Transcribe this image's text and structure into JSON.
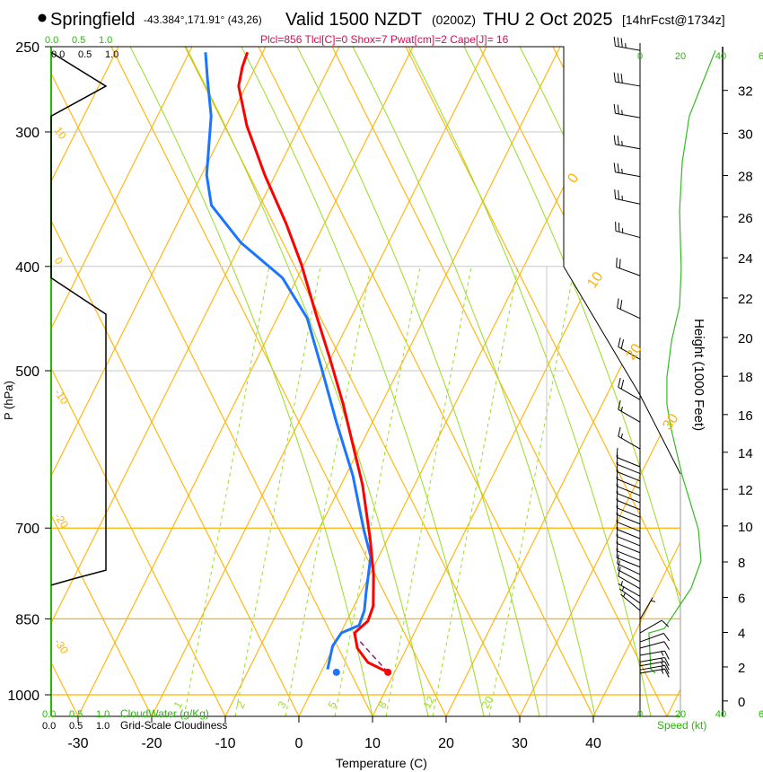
{
  "header": {
    "station": "Springfield",
    "coords": "-43.384°,171.91° (43,26)",
    "valid": "Valid 1500 NZDT",
    "utc": "(0200Z)",
    "date": "THU 2 Oct 2025",
    "forecast": "[14hrFcst@1734z]",
    "params": "Plcl=856 Tlcl[C]=0 Shox=7 Pwat[cm]=2 Cape[J]= 16"
  },
  "colors": {
    "temperature": "#ff0000",
    "dewpoint": "#1a75ff",
    "isotherm": "#ffb300",
    "mixing": "#99dd22",
    "green_label": "#22bb00",
    "params": "#cc1155",
    "parcel": "#882288"
  },
  "chart_data": {
    "type": "line",
    "title": "Skew-T log-P sounding",
    "xlabel": "Temperature (C)",
    "ylabel": "P (hPa)",
    "right_label": "Height (1000 Feet)",
    "x_ticks": [
      -30,
      -20,
      -10,
      0,
      10,
      20,
      30,
      40
    ],
    "y_ticks": [
      250,
      300,
      400,
      500,
      700,
      850,
      1000
    ],
    "ylim": [
      1000,
      250
    ],
    "isotherm_labels": [
      "0",
      "10",
      "20",
      "30"
    ],
    "isotherm_label_values": [
      0,
      10,
      20,
      30
    ],
    "adiabat_labels": [
      "10",
      "0",
      "-10",
      "-20",
      "-30"
    ],
    "mixing_ratio_labels": [
      "1",
      "2",
      "3",
      "5",
      "8",
      "12",
      "20"
    ],
    "temperature": [
      [
        953,
        9.1
      ],
      [
        933,
        5.7
      ],
      [
        905,
        3.3
      ],
      [
        876,
        1.9
      ],
      [
        854,
        2.9
      ],
      [
        827,
        2.6
      ],
      [
        773,
        0.5
      ],
      [
        716,
        -2.4
      ],
      [
        638,
        -7.1
      ],
      [
        596,
        -10.3
      ],
      [
        537,
        -15.2
      ],
      [
        488,
        -20
      ],
      [
        443,
        -25
      ],
      [
        398,
        -30.4
      ],
      [
        365,
        -35.2
      ],
      [
        329,
        -41.4
      ],
      [
        296,
        -47.2
      ],
      [
        272,
        -51
      ],
      [
        261,
        -51.8
      ],
      [
        253,
        -52.1
      ]
    ],
    "dewpoint": [
      [
        947,
        0.7
      ],
      [
        901,
        -0.2
      ],
      [
        876,
        0.1
      ],
      [
        862,
        2.0
      ],
      [
        835,
        1.7
      ],
      [
        803,
        0.7
      ],
      [
        744,
        -1.1
      ],
      [
        702,
        -3.9
      ],
      [
        626,
        -9.0
      ],
      [
        558,
        -14.9
      ],
      [
        497,
        -20.6
      ],
      [
        447,
        -25.9
      ],
      [
        410,
        -32
      ],
      [
        380,
        -40.1
      ],
      [
        351,
        -46.6
      ],
      [
        329,
        -49.3
      ],
      [
        290,
        -52.7
      ],
      [
        268,
        -55.7
      ],
      [
        253,
        -57.8
      ]
    ],
    "surface": {
      "p": 953,
      "t": 9.1,
      "td": 2.1
    },
    "parcel": [
      [
        953,
        9.1
      ],
      [
        890,
        3.0
      ]
    ],
    "cloud_cover_scale": [
      "0.0",
      "0.5",
      "1.0"
    ],
    "cloud_cover_label": "Grid-Scale Cloudiness",
    "cloud_water_scale": [
      "0.0",
      "0.5",
      "1.0"
    ],
    "cloud_water_label": "CloudWater (g/Kg)",
    "cloud_cover": [
      [
        253,
        0
      ],
      [
        272,
        1.0
      ],
      [
        290,
        0
      ],
      [
        410,
        0
      ],
      [
        443,
        1.0
      ],
      [
        766,
        1.0
      ],
      [
        781,
        0.38
      ],
      [
        791,
        0
      ]
    ],
    "wind_speed_label": "Speed (kt)",
    "wind_speed_ticks": [
      "0",
      "20",
      "40",
      "6"
    ],
    "wind_speed": [
      [
        252,
        37.3
      ],
      [
        290,
        24.4
      ],
      [
        320,
        20.9
      ],
      [
        355,
        19.6
      ],
      [
        380,
        20
      ],
      [
        402,
        20.4
      ],
      [
        435,
        19.6
      ],
      [
        469,
        15.6
      ],
      [
        507,
        13.3
      ],
      [
        537,
        13.3
      ],
      [
        563,
        15.1
      ],
      [
        626,
        20.9
      ],
      [
        702,
        28.9
      ],
      [
        751,
        30.2
      ],
      [
        796,
        25.3
      ],
      [
        868,
        12
      ],
      [
        876,
        4.4
      ],
      [
        946,
        5.3
      ],
      [
        955,
        7.6
      ]
    ],
    "height_ticks": [
      0,
      2,
      4,
      6,
      8,
      10,
      12,
      14,
      16,
      18,
      20,
      22,
      24,
      26,
      28,
      30,
      32
    ],
    "wind_barbs": [
      [
        252,
        280,
        35
      ],
      [
        272,
        280,
        30
      ],
      [
        291,
        280,
        25
      ],
      [
        311,
        280,
        25
      ],
      [
        330,
        280,
        25
      ],
      [
        350,
        282,
        25
      ],
      [
        376,
        285,
        25
      ],
      [
        408,
        290,
        20
      ],
      [
        447,
        295,
        20
      ],
      [
        488,
        300,
        20
      ],
      [
        532,
        300,
        20
      ],
      [
        558,
        300,
        15
      ],
      [
        591,
        300,
        15
      ],
      [
        614,
        292,
        10
      ],
      [
        623,
        292,
        10
      ],
      [
        633,
        292,
        10
      ],
      [
        643,
        292,
        10
      ],
      [
        653,
        292,
        10
      ],
      [
        663,
        292,
        10
      ],
      [
        673,
        292,
        10
      ],
      [
        684,
        292,
        10
      ],
      [
        694,
        292,
        10
      ],
      [
        705,
        292,
        10
      ],
      [
        716,
        292,
        10
      ],
      [
        727,
        292,
        10
      ],
      [
        738,
        292,
        10
      ],
      [
        750,
        292,
        10
      ],
      [
        761,
        292,
        10
      ],
      [
        773,
        295,
        10
      ],
      [
        785,
        298,
        10
      ],
      [
        797,
        300,
        10
      ],
      [
        810,
        300,
        5
      ],
      [
        822,
        305,
        5
      ],
      [
        835,
        310,
        5
      ],
      [
        851,
        30,
        5
      ],
      [
        876,
        60,
        10
      ],
      [
        893,
        70,
        10
      ],
      [
        905,
        75,
        10
      ],
      [
        919,
        80,
        15
      ],
      [
        932,
        80,
        15
      ],
      [
        940,
        80,
        15
      ],
      [
        948,
        80,
        15
      ],
      [
        955,
        80,
        15
      ]
    ]
  }
}
